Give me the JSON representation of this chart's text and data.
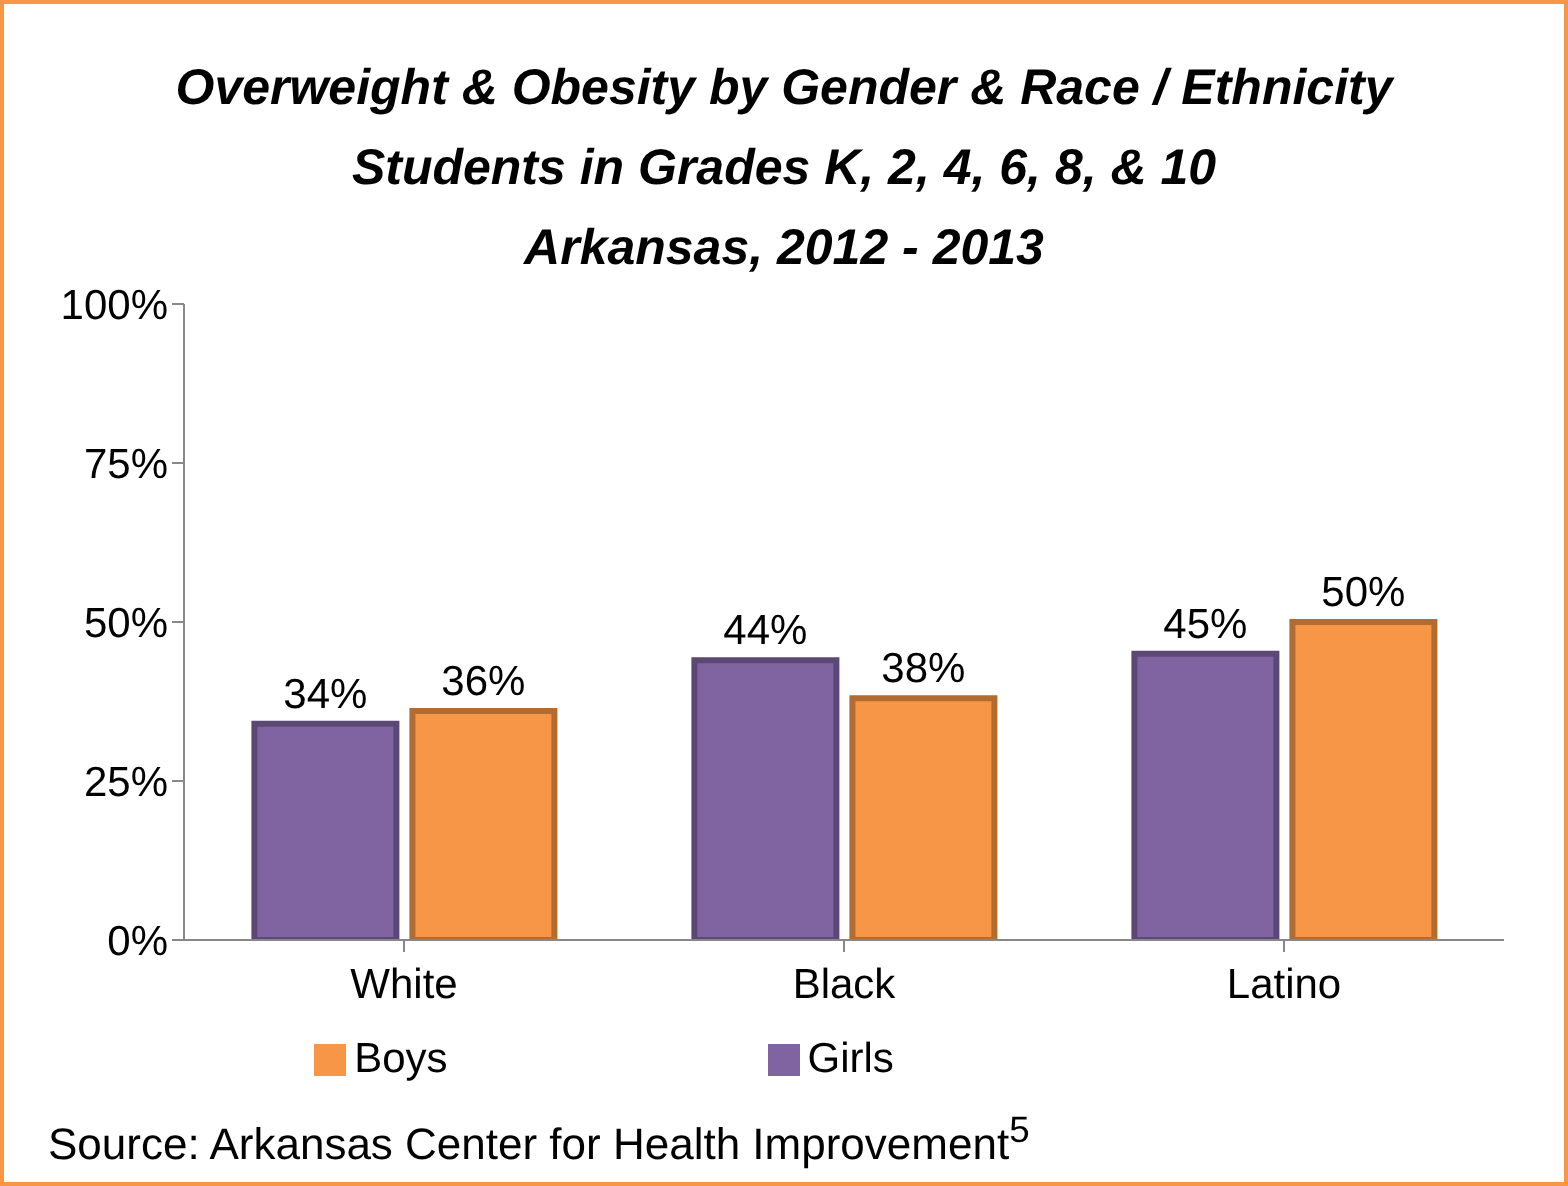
{
  "chart_data": {
    "type": "bar",
    "title": "Overweight & Obesity by Gender & Race / Ethnicity",
    "subtitle": "Students in Grades K, 2, 4, 6, 8, & 10\nArkansas, 2012 - 2013",
    "categories": [
      "White",
      "Black",
      "Latino"
    ],
    "series": [
      {
        "name": "Girls",
        "color": "#8064a2",
        "values": [
          34,
          44,
          45
        ],
        "value_labels": [
          "34%",
          "44%",
          "45%"
        ]
      },
      {
        "name": "Boys",
        "color": "#f79646",
        "values": [
          36,
          38,
          50
        ],
        "value_labels": [
          "36%",
          "38%",
          "50%"
        ]
      }
    ],
    "ylim": [
      0,
      100
    ],
    "yticks": [
      {
        "value": 0,
        "label": "0%"
      },
      {
        "value": 25,
        "label": "25%"
      },
      {
        "value": 50,
        "label": "50%"
      },
      {
        "value": 75,
        "label": "75%"
      },
      {
        "value": 100,
        "label": "100%"
      }
    ],
    "grid": false,
    "legend": "bottom",
    "annotations": [
      "Source: Arkansas Center for Health Improvement$^{5}$"
    ]
  }
}
